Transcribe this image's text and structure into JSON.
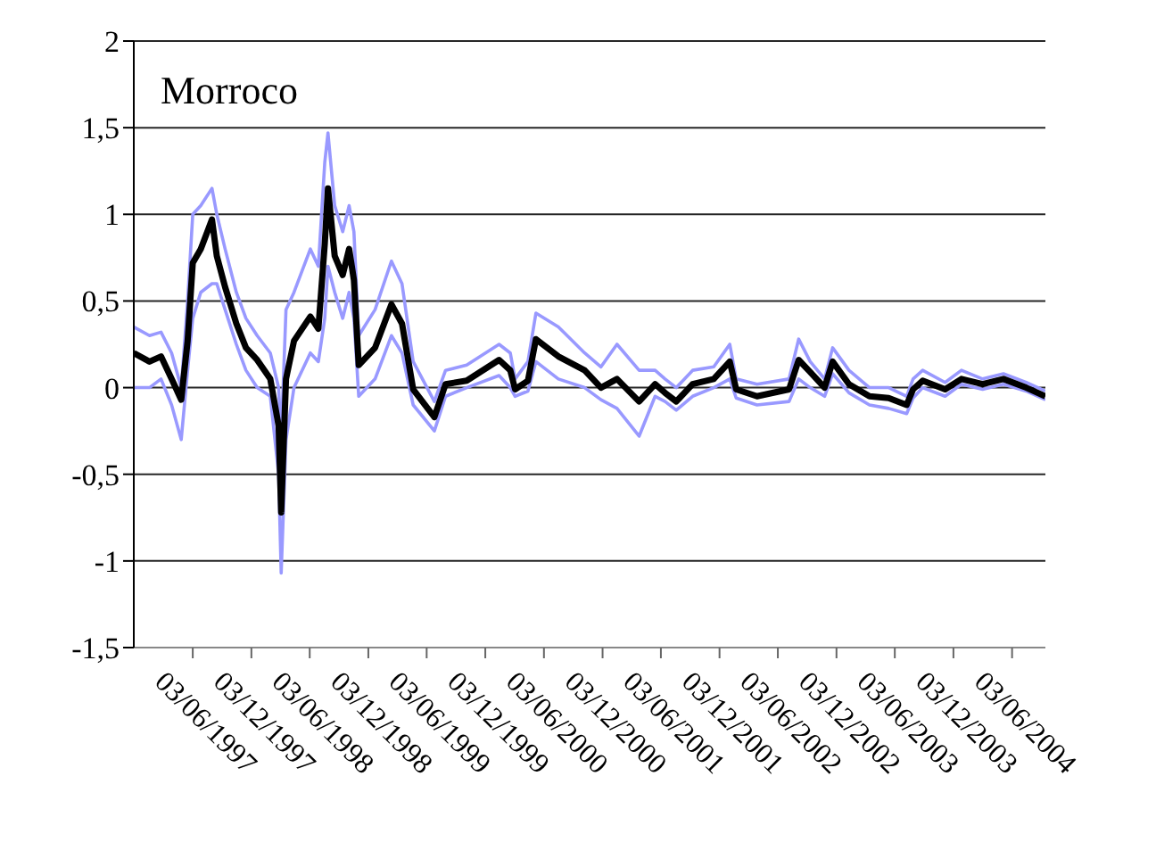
{
  "chart_data": {
    "type": "line",
    "title": "Morroco",
    "x": [
      "1996-12-01",
      "1997-01-19",
      "1997-02-24",
      "1997-03-29",
      "1997-04-28",
      "1997-05-18",
      "1997-06-03",
      "1997-06-28",
      "1997-08-02",
      "1997-08-17",
      "1997-09-12",
      "1997-10-17",
      "1997-11-16",
      "1997-12-21",
      "1998-01-31",
      "1998-02-26",
      "1998-03-06",
      "1998-03-21",
      "1998-04-15",
      "1998-06-05",
      "1998-06-30",
      "1998-07-20",
      "1998-07-30",
      "1998-08-20",
      "1998-09-14",
      "1998-10-04",
      "1998-10-19",
      "1998-11-03",
      "1998-12-24",
      "1999-02-13",
      "1999-03-18",
      "1999-04-22",
      "1999-06-27",
      "1999-08-01",
      "1999-10-06",
      "2000-01-15",
      "2000-02-19",
      "2000-03-05",
      "2000-04-14",
      "2000-05-09",
      "2000-07-18",
      "2000-10-08",
      "2000-11-28",
      "2001-01-17",
      "2001-03-27",
      "2001-05-16",
      "2001-06-16",
      "2001-07-21",
      "2001-09-10",
      "2001-11-15",
      "2002-01-04",
      "2002-01-24",
      "2002-03-30",
      "2002-07-08",
      "2002-08-07",
      "2002-09-12",
      "2002-10-27",
      "2002-11-21",
      "2003-01-11",
      "2003-03-16",
      "2003-05-15",
      "2003-07-10",
      "2003-07-30",
      "2003-08-29",
      "2003-11-07",
      "2003-12-28",
      "2004-03-03",
      "2004-05-07",
      "2004-07-17",
      "2004-09-15"
    ],
    "series": [
      {
        "color": "#9999ff",
        "values": [
          0.35,
          0.3,
          0.32,
          0.2,
          0.0,
          0.5,
          1.0,
          1.05,
          1.15,
          1.0,
          0.8,
          0.55,
          0.4,
          0.3,
          0.2,
          0.0,
          -0.3,
          0.45,
          0.55,
          0.8,
          0.7,
          1.3,
          1.47,
          1.05,
          0.9,
          1.05,
          0.9,
          0.3,
          0.45,
          0.73,
          0.6,
          0.15,
          -0.08,
          0.1,
          0.13,
          0.25,
          0.2,
          0.05,
          0.15,
          0.43,
          0.35,
          0.2,
          0.12,
          0.25,
          0.1,
          0.1,
          0.05,
          0.0,
          0.1,
          0.12,
          0.25,
          0.05,
          0.02,
          0.05,
          0.28,
          0.15,
          0.05,
          0.23,
          0.1,
          0.0,
          0.0,
          -0.05,
          0.05,
          0.1,
          0.03,
          0.1,
          0.05,
          0.08,
          0.03,
          -0.02
        ]
      },
      {
        "color": "#9999ff",
        "values": [
          0.0,
          0.0,
          0.05,
          -0.1,
          -0.3,
          0.1,
          0.4,
          0.55,
          0.6,
          0.6,
          0.45,
          0.25,
          0.1,
          0.0,
          -0.05,
          -0.5,
          -1.07,
          -0.3,
          0.0,
          0.2,
          0.15,
          0.4,
          0.7,
          0.55,
          0.4,
          0.55,
          0.4,
          -0.05,
          0.05,
          0.3,
          0.2,
          -0.1,
          -0.25,
          -0.05,
          0.0,
          0.07,
          0.0,
          -0.05,
          -0.02,
          0.15,
          0.05,
          0.0,
          -0.07,
          -0.12,
          -0.28,
          -0.05,
          -0.08,
          -0.13,
          -0.05,
          0.0,
          0.05,
          -0.06,
          -0.1,
          -0.08,
          0.05,
          0.0,
          -0.05,
          0.08,
          -0.03,
          -0.1,
          -0.12,
          -0.15,
          -0.06,
          0.0,
          -0.05,
          0.02,
          -0.01,
          0.02,
          -0.02,
          -0.07
        ]
      },
      {
        "color": "#000000",
        "values": [
          0.2,
          0.15,
          0.18,
          0.05,
          -0.07,
          0.27,
          0.72,
          0.8,
          0.97,
          0.76,
          0.58,
          0.37,
          0.23,
          0.16,
          0.05,
          -0.22,
          -0.72,
          0.05,
          0.27,
          0.41,
          0.34,
          0.83,
          1.15,
          0.76,
          0.65,
          0.8,
          0.62,
          0.13,
          0.23,
          0.48,
          0.37,
          -0.01,
          -0.17,
          0.02,
          0.04,
          0.16,
          0.1,
          -0.01,
          0.04,
          0.28,
          0.18,
          0.1,
          0.0,
          0.05,
          -0.08,
          0.02,
          -0.03,
          -0.08,
          0.02,
          0.05,
          0.15,
          -0.01,
          -0.05,
          -0.01,
          0.16,
          0.09,
          0.0,
          0.15,
          0.02,
          -0.05,
          -0.06,
          -0.1,
          -0.01,
          0.04,
          -0.01,
          0.05,
          0.02,
          0.05,
          0.0,
          -0.05
        ]
      }
    ],
    "xlim": [
      "1996-12-01",
      "2004-09-15"
    ],
    "xticks": [
      {
        "value": "1997-06-03",
        "label": "03/06/1997"
      },
      {
        "value": "1997-12-03",
        "label": "03/12/1997"
      },
      {
        "value": "1998-06-03",
        "label": "03/06/1998"
      },
      {
        "value": "1998-12-03",
        "label": "03/12/1998"
      },
      {
        "value": "1999-06-03",
        "label": "03/06/1999"
      },
      {
        "value": "1999-12-03",
        "label": "03/12/1999"
      },
      {
        "value": "2000-06-03",
        "label": "03/06/2000"
      },
      {
        "value": "2000-12-03",
        "label": "03/12/2000"
      },
      {
        "value": "2001-06-03",
        "label": "03/06/2001"
      },
      {
        "value": "2001-12-03",
        "label": "03/12/2001"
      },
      {
        "value": "2002-06-03",
        "label": "03/06/2002"
      },
      {
        "value": "2002-12-03",
        "label": "03/12/2002"
      },
      {
        "value": "2003-06-03",
        "label": "03/06/2003"
      },
      {
        "value": "2003-12-03",
        "label": "03/12/2003"
      },
      {
        "value": "2004-06-03",
        "label": "03/06/2004"
      }
    ],
    "ylim": [
      -1.5,
      2
    ],
    "yticks": [
      {
        "value": -1.5,
        "label": "-1,5"
      },
      {
        "value": -1,
        "label": "-1"
      },
      {
        "value": -0.5,
        "label": "-0,5"
      },
      {
        "value": 0,
        "label": "0"
      },
      {
        "value": 0.5,
        "label": "0,5"
      },
      {
        "value": 1,
        "label": "1"
      },
      {
        "value": 1.5,
        "label": "1,5"
      },
      {
        "value": 2,
        "label": "2"
      }
    ],
    "grid": "y",
    "marker": "none",
    "line_style": "solid"
  }
}
